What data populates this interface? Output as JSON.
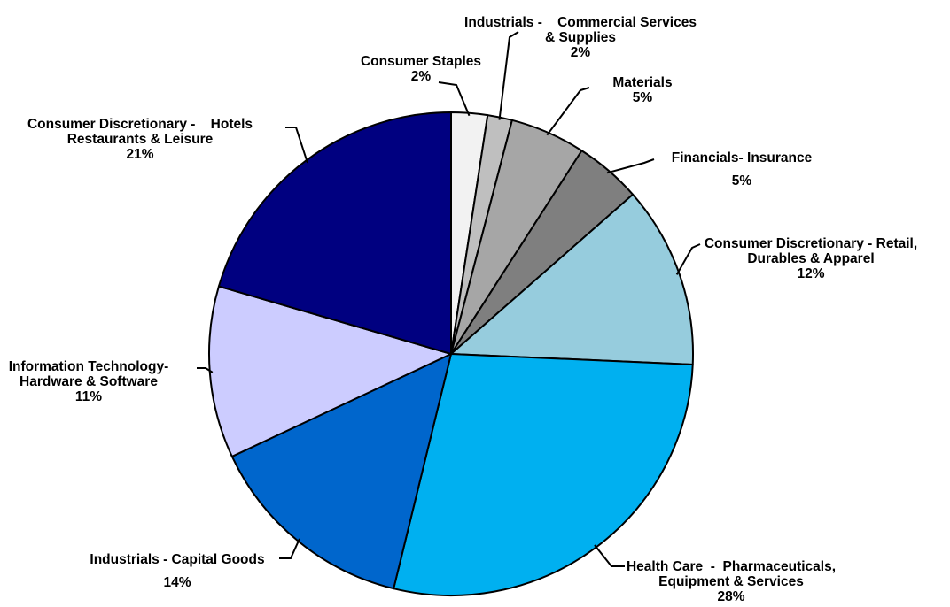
{
  "chart_data": {
    "type": "pie",
    "title": "",
    "start_angle_deg": 0,
    "direction": "clockwise",
    "slices": [
      {
        "id": "consumer-staples",
        "label_lines": [
          "Consumer Staples",
          "2%"
        ],
        "value": 2.5,
        "color": "#F2F2F2"
      },
      {
        "id": "industrials-commercial",
        "label_lines": [
          "Industrials -    Commercial Services",
          "& Supplies",
          "2%"
        ],
        "value": 1.7,
        "color": "#BFBFBF"
      },
      {
        "id": "materials",
        "label_lines": [
          "Materials",
          "5%"
        ],
        "value": 5.2,
        "color": "#A6A6A6"
      },
      {
        "id": "financials-insurance",
        "label_lines": [
          "Financials- Insurance",
          "5%"
        ],
        "value": 4.6,
        "color": "#7F7F7F"
      },
      {
        "id": "consumer-discretionary-retail",
        "label_lines": [
          "Consumer Discretionary - Retail,",
          "Durables & Apparel",
          "12%"
        ],
        "value": 12.6,
        "color": "#96CCDD"
      },
      {
        "id": "health-care",
        "label_lines": [
          "Health Care  -  Pharmaceuticals,",
          "Equipment & Services",
          "28%"
        ],
        "value": 29.1,
        "color": "#00B0F0"
      },
      {
        "id": "industrials-capital-goods",
        "label_lines": [
          "Industrials - Capital Goods",
          "14%"
        ],
        "value": 14.7,
        "color": "#0066CC"
      },
      {
        "id": "information-technology",
        "label_lines": [
          "Information Technology-",
          "Hardware & Software",
          "11%"
        ],
        "value": 11.9,
        "color": "#CCCCFF"
      },
      {
        "id": "consumer-discretionary-hotels",
        "label_lines": [
          "Consumer Discretionary -    Hotels",
          "Restaurants & Leisure",
          "21%"
        ],
        "value": 21.2,
        "color": "#000080"
      }
    ]
  }
}
